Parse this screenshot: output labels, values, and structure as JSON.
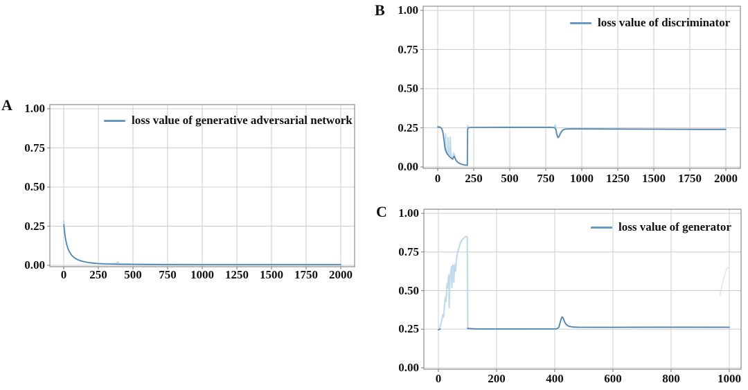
{
  "colors": {
    "line_dark": "#4e81ad",
    "line_light": "#b8d4e8",
    "legend_swatch": "#6899c4",
    "grid": "#cccccc",
    "spine": "#8a8a8a",
    "text": "#111111",
    "background": "#ffffff"
  },
  "chart_data": [
    {
      "panel": "A",
      "type": "line",
      "legend_label": "loss value of generative adversarial network",
      "legend_position": "upper center",
      "grid": true,
      "xlim": [
        0,
        2000
      ],
      "ylim": [
        0,
        1
      ],
      "x_ticks": [
        0,
        250,
        500,
        750,
        1000,
        1250,
        1500,
        1750,
        2000
      ],
      "x_tick_labels": [
        "0",
        "250",
        "500",
        "750",
        "1000",
        "1250",
        "1500",
        "1750",
        "2000"
      ],
      "y_ticks": [
        0,
        0.25,
        0.5,
        0.75,
        1
      ],
      "y_tick_labels": [
        "0.00",
        "0.25",
        "0.50",
        "0.75",
        "1.00"
      ],
      "series": [
        {
          "name": "loss value of generative adversarial network (raw)",
          "style": "light",
          "points": [
            [
              0,
              0.285
            ],
            [
              5,
              0.235
            ],
            [
              10,
              0.19
            ],
            [
              20,
              0.145
            ],
            [
              30,
              0.112
            ],
            [
              40,
              0.09
            ],
            [
              50,
              0.075
            ],
            [
              60,
              0.063
            ],
            [
              80,
              0.048
            ],
            [
              100,
              0.038
            ],
            [
              125,
              0.029
            ],
            [
              150,
              0.023
            ],
            [
              175,
              0.019
            ],
            [
              200,
              0.016
            ],
            [
              250,
              0.012
            ],
            [
              300,
              0.01
            ],
            [
              350,
              0.009
            ],
            [
              380,
              0.012
            ],
            [
              390,
              0.022
            ],
            [
              400,
              0.01
            ],
            [
              500,
              0.007
            ],
            [
              750,
              0.006
            ],
            [
              1000,
              0.005
            ],
            [
              1500,
              0.005
            ],
            [
              2000,
              0.005
            ]
          ]
        },
        {
          "name": "loss value of generative adversarial network (smoothed)",
          "style": "dark",
          "points": [
            [
              0,
              0.26
            ],
            [
              5,
              0.222
            ],
            [
              10,
              0.185
            ],
            [
              15,
              0.158
            ],
            [
              20,
              0.137
            ],
            [
              30,
              0.107
            ],
            [
              40,
              0.088
            ],
            [
              50,
              0.073
            ],
            [
              60,
              0.061
            ],
            [
              80,
              0.046
            ],
            [
              100,
              0.036
            ],
            [
              125,
              0.028
            ],
            [
              150,
              0.022
            ],
            [
              175,
              0.018
            ],
            [
              200,
              0.015
            ],
            [
              250,
              0.011
            ],
            [
              300,
              0.009
            ],
            [
              400,
              0.007
            ],
            [
              500,
              0.006
            ],
            [
              750,
              0.005
            ],
            [
              1000,
              0.004
            ],
            [
              1500,
              0.004
            ],
            [
              2000,
              0.004
            ]
          ]
        }
      ]
    },
    {
      "panel": "B",
      "type": "line",
      "legend_label": "loss value of discriminator",
      "legend_position": "upper right",
      "grid": true,
      "xlim": [
        0,
        2000
      ],
      "ylim": [
        0,
        1
      ],
      "x_ticks": [
        0,
        250,
        500,
        750,
        1000,
        1250,
        1500,
        1750,
        2000
      ],
      "x_tick_labels": [
        "0",
        "250",
        "500",
        "750",
        "1000",
        "1250",
        "1500",
        "1750",
        "2000"
      ],
      "y_ticks": [
        0,
        0.25,
        0.5,
        0.75,
        1
      ],
      "y_tick_labels": [
        "0.00",
        "0.25",
        "0.50",
        "0.75",
        "1.00"
      ],
      "series": [
        {
          "name": "loss value of discriminator (raw)",
          "style": "light",
          "points": [
            [
              0,
              0.26
            ],
            [
              15,
              0.257
            ],
            [
              25,
              0.248
            ],
            [
              35,
              0.225
            ],
            [
              42,
              0.185
            ],
            [
              48,
              0.135
            ],
            [
              52,
              0.105
            ],
            [
              55,
              0.21
            ],
            [
              57,
              0.12
            ],
            [
              60,
              0.092
            ],
            [
              65,
              0.08
            ],
            [
              70,
              0.105
            ],
            [
              72,
              0.185
            ],
            [
              74,
              0.1
            ],
            [
              78,
              0.073
            ],
            [
              83,
              0.066
            ],
            [
              87,
              0.19
            ],
            [
              90,
              0.12
            ],
            [
              94,
              0.072
            ],
            [
              100,
              0.052
            ],
            [
              106,
              0.058
            ],
            [
              111,
              0.088
            ],
            [
              116,
              0.078
            ],
            [
              122,
              0.05
            ],
            [
              130,
              0.035
            ],
            [
              140,
              0.027
            ],
            [
              152,
              0.021
            ],
            [
              168,
              0.016
            ],
            [
              185,
              0.012
            ],
            [
              200,
              0.01
            ],
            [
              205,
              0.009
            ],
            [
              207,
              0.265
            ],
            [
              210,
              0.248
            ],
            [
              220,
              0.253
            ],
            [
              400,
              0.254
            ],
            [
              600,
              0.254
            ],
            [
              790,
              0.254
            ],
            [
              808,
              0.251
            ],
            [
              816,
              0.268
            ],
            [
              820,
              0.245
            ],
            [
              826,
              0.205
            ],
            [
              832,
              0.186
            ],
            [
              838,
              0.192
            ],
            [
              848,
              0.214
            ],
            [
              860,
              0.233
            ],
            [
              875,
              0.241
            ],
            [
              900,
              0.244
            ],
            [
              1100,
              0.243
            ],
            [
              1400,
              0.242
            ],
            [
              1700,
              0.241
            ],
            [
              2000,
              0.241
            ]
          ]
        },
        {
          "name": "loss value of discriminator (smoothed)",
          "style": "dark",
          "points": [
            [
              0,
              0.255
            ],
            [
              18,
              0.253
            ],
            [
              28,
              0.246
            ],
            [
              36,
              0.222
            ],
            [
              44,
              0.17
            ],
            [
              50,
              0.125
            ],
            [
              56,
              0.105
            ],
            [
              62,
              0.09
            ],
            [
              68,
              0.082
            ],
            [
              74,
              0.075
            ],
            [
              80,
              0.067
            ],
            [
              86,
              0.062
            ],
            [
              92,
              0.058
            ],
            [
              98,
              0.052
            ],
            [
              104,
              0.05
            ],
            [
              110,
              0.062
            ],
            [
              115,
              0.068
            ],
            [
              121,
              0.055
            ],
            [
              128,
              0.042
            ],
            [
              136,
              0.033
            ],
            [
              146,
              0.026
            ],
            [
              158,
              0.02
            ],
            [
              172,
              0.016
            ],
            [
              188,
              0.013
            ],
            [
              202,
              0.011
            ],
            [
              206,
              0.01
            ],
            [
              208,
              0.24
            ],
            [
              212,
              0.25
            ],
            [
              230,
              0.252
            ],
            [
              500,
              0.253
            ],
            [
              780,
              0.253
            ],
            [
              800,
              0.252
            ],
            [
              812,
              0.25
            ],
            [
              820,
              0.238
            ],
            [
              827,
              0.21
            ],
            [
              833,
              0.192
            ],
            [
              838,
              0.188
            ],
            [
              844,
              0.196
            ],
            [
              852,
              0.212
            ],
            [
              862,
              0.228
            ],
            [
              874,
              0.238
            ],
            [
              890,
              0.242
            ],
            [
              950,
              0.243
            ],
            [
              1200,
              0.242
            ],
            [
              1500,
              0.241
            ],
            [
              1800,
              0.24
            ],
            [
              2000,
              0.24
            ]
          ]
        }
      ]
    },
    {
      "panel": "C",
      "type": "line",
      "legend_label": "loss value of generator",
      "legend_position": "upper right",
      "grid": true,
      "xlim": [
        0,
        1000
      ],
      "ylim": [
        0,
        1
      ],
      "x_ticks": [
        0,
        200,
        400,
        600,
        800,
        1000
      ],
      "x_tick_labels": [
        "0",
        "200",
        "400",
        "600",
        "800",
        "1000"
      ],
      "y_ticks": [
        0,
        0.25,
        0.5,
        0.75,
        1
      ],
      "y_tick_labels": [
        "0.00",
        "0.25",
        "0.50",
        "0.75",
        "1.00"
      ],
      "series": [
        {
          "name": "loss value of generator (raw)",
          "style": "light",
          "points": [
            [
              0,
              0.245
            ],
            [
              4,
              0.252
            ],
            [
              8,
              0.285
            ],
            [
              12,
              0.31
            ],
            [
              15,
              0.345
            ],
            [
              18,
              0.33
            ],
            [
              21,
              0.4
            ],
            [
              24,
              0.455
            ],
            [
              26,
              0.43
            ],
            [
              28,
              0.5
            ],
            [
              30,
              0.545
            ],
            [
              32,
              0.52
            ],
            [
              34,
              0.575
            ],
            [
              36,
              0.6
            ],
            [
              37,
              0.39
            ],
            [
              39,
              0.56
            ],
            [
              41,
              0.605
            ],
            [
              43,
              0.625
            ],
            [
              45,
              0.655
            ],
            [
              46,
              0.52
            ],
            [
              48,
              0.61
            ],
            [
              50,
              0.665
            ],
            [
              52,
              0.62
            ],
            [
              53,
              0.555
            ],
            [
              55,
              0.645
            ],
            [
              57,
              0.67
            ],
            [
              59,
              0.625
            ],
            [
              61,
              0.68
            ],
            [
              63,
              0.715
            ],
            [
              66,
              0.745
            ],
            [
              70,
              0.775
            ],
            [
              74,
              0.8
            ],
            [
              78,
              0.818
            ],
            [
              83,
              0.832
            ],
            [
              88,
              0.842
            ],
            [
              93,
              0.848
            ],
            [
              97,
              0.85
            ],
            [
              99,
              0.848
            ],
            [
              100,
              0.6
            ],
            [
              101,
              0.255
            ],
            [
              150,
              0.251
            ],
            [
              300,
              0.251
            ],
            [
              405,
              0.252
            ],
            [
              412,
              0.258
            ],
            [
              417,
              0.285
            ],
            [
              421,
              0.315
            ],
            [
              424,
              0.33
            ],
            [
              427,
              0.327
            ],
            [
              431,
              0.305
            ],
            [
              436,
              0.283
            ],
            [
              443,
              0.272
            ],
            [
              452,
              0.266
            ],
            [
              470,
              0.263
            ],
            [
              600,
              0.263
            ],
            [
              800,
              0.264
            ],
            [
              1000,
              0.263
            ]
          ]
        },
        {
          "name": "loss value of generator (end artifact)",
          "style": "faint",
          "points": [
            [
              968,
              0.47
            ],
            [
              975,
              0.535
            ],
            [
              982,
              0.585
            ],
            [
              988,
              0.625
            ],
            [
              993,
              0.65
            ],
            [
              996,
              0.645
            ]
          ]
        },
        {
          "name": "loss value of generator (start)",
          "style": "dark",
          "points": [
            [
              0,
              0.246
            ],
            [
              6,
              0.251
            ]
          ]
        },
        {
          "name": "loss value of generator (smoothed)",
          "style": "dark",
          "points": [
            [
              100,
              0.255
            ],
            [
              120,
              0.252
            ],
            [
              200,
              0.252
            ],
            [
              300,
              0.252
            ],
            [
              400,
              0.252
            ],
            [
              408,
              0.254
            ],
            [
              414,
              0.262
            ],
            [
              419,
              0.295
            ],
            [
              423,
              0.322
            ],
            [
              426,
              0.33
            ],
            [
              429,
              0.322
            ],
            [
              434,
              0.298
            ],
            [
              440,
              0.28
            ],
            [
              448,
              0.27
            ],
            [
              460,
              0.265
            ],
            [
              480,
              0.263
            ],
            [
              550,
              0.262
            ],
            [
              700,
              0.263
            ],
            [
              850,
              0.263
            ],
            [
              1000,
              0.263
            ]
          ]
        }
      ]
    }
  ]
}
